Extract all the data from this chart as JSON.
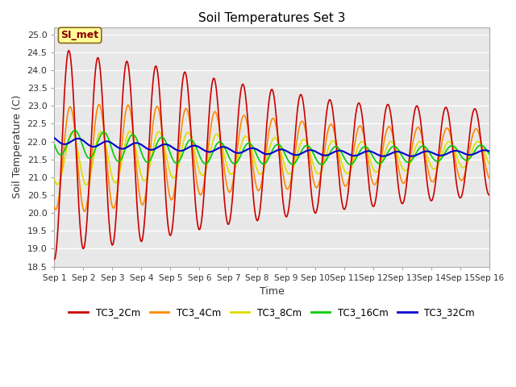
{
  "title": "Soil Temperatures Set 3",
  "xlabel": "Time",
  "ylabel": "Soil Temperature (C)",
  "ylim": [
    18.5,
    25.2
  ],
  "xlim": [
    0,
    15
  ],
  "plot_bg": "#e8e8e8",
  "fig_bg": "#ffffff",
  "annotation_text": "SI_met",
  "annotation_bg": "#ffff99",
  "annotation_border": "#8b6914",
  "series": {
    "TC3_2Cm": {
      "color": "#cc0000",
      "lw": 1.2
    },
    "TC3_4Cm": {
      "color": "#ff8800",
      "lw": 1.2
    },
    "TC3_8Cm": {
      "color": "#dddd00",
      "lw": 1.2
    },
    "TC3_16Cm": {
      "color": "#00cc00",
      "lw": 1.2
    },
    "TC3_32Cm": {
      "color": "#0000cc",
      "lw": 1.2
    }
  },
  "xtick_labels": [
    "Sep 1",
    "Sep 2",
    "Sep 3",
    "Sep 4",
    "Sep 5",
    "Sep 6",
    "Sep 7",
    "Sep 8",
    "Sep 9",
    "Sep 10",
    "Sep 11",
    "Sep 12",
    "Sep 13",
    "Sep 14",
    "Sep 15",
    "Sep 16"
  ],
  "ytick_vals": [
    18.5,
    19.0,
    19.5,
    20.0,
    20.5,
    21.0,
    21.5,
    22.0,
    22.5,
    23.0,
    23.5,
    24.0,
    24.5,
    25.0
  ]
}
